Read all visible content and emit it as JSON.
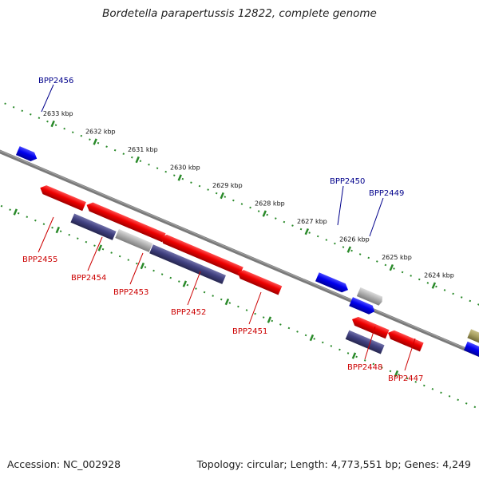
{
  "title": "Bordetella parapertussis 12822, complete genome",
  "accession": "Accession: NC_002928",
  "summary": "Topology: circular; Length: 4,773,551 bp; Genes: 4,249",
  "colors": {
    "backbone": "#808080",
    "ruler": "#2a8a2a",
    "forward_label": "#00008b",
    "reverse_label": "#cc0000",
    "gene_red": "#ee0000",
    "gene_blue": "#0000ee",
    "gene_navy": "#404080",
    "gene_grey": "#b0b0b0",
    "gene_olive": "#a8a060"
  },
  "ticks": [
    {
      "label": "2633 kbp",
      "kbp": 2633
    },
    {
      "label": "2632 kbp",
      "kbp": 2632
    },
    {
      "label": "2631 kbp",
      "kbp": 2631
    },
    {
      "label": "2630 kbp",
      "kbp": 2630
    },
    {
      "label": "2629 kbp",
      "kbp": 2629
    },
    {
      "label": "2628 kbp",
      "kbp": 2628
    },
    {
      "label": "2627 kbp",
      "kbp": 2627
    },
    {
      "label": "2626 kbp",
      "kbp": 2626
    },
    {
      "label": "2625 kbp",
      "kbp": 2625
    },
    {
      "label": "2624 kbp",
      "kbp": 2624
    }
  ],
  "labels": {
    "BPP2456": "BPP2456",
    "BPP2455": "BPP2455",
    "BPP2454": "BPP2454",
    "BPP2453": "BPP2453",
    "BPP2452": "BPP2452",
    "BPP2451": "BPP2451",
    "BPP2450": "BPP2450",
    "BPP2449": "BPP2449",
    "BPP2448": "BPP2448",
    "BPP2447": "BPP2447"
  }
}
